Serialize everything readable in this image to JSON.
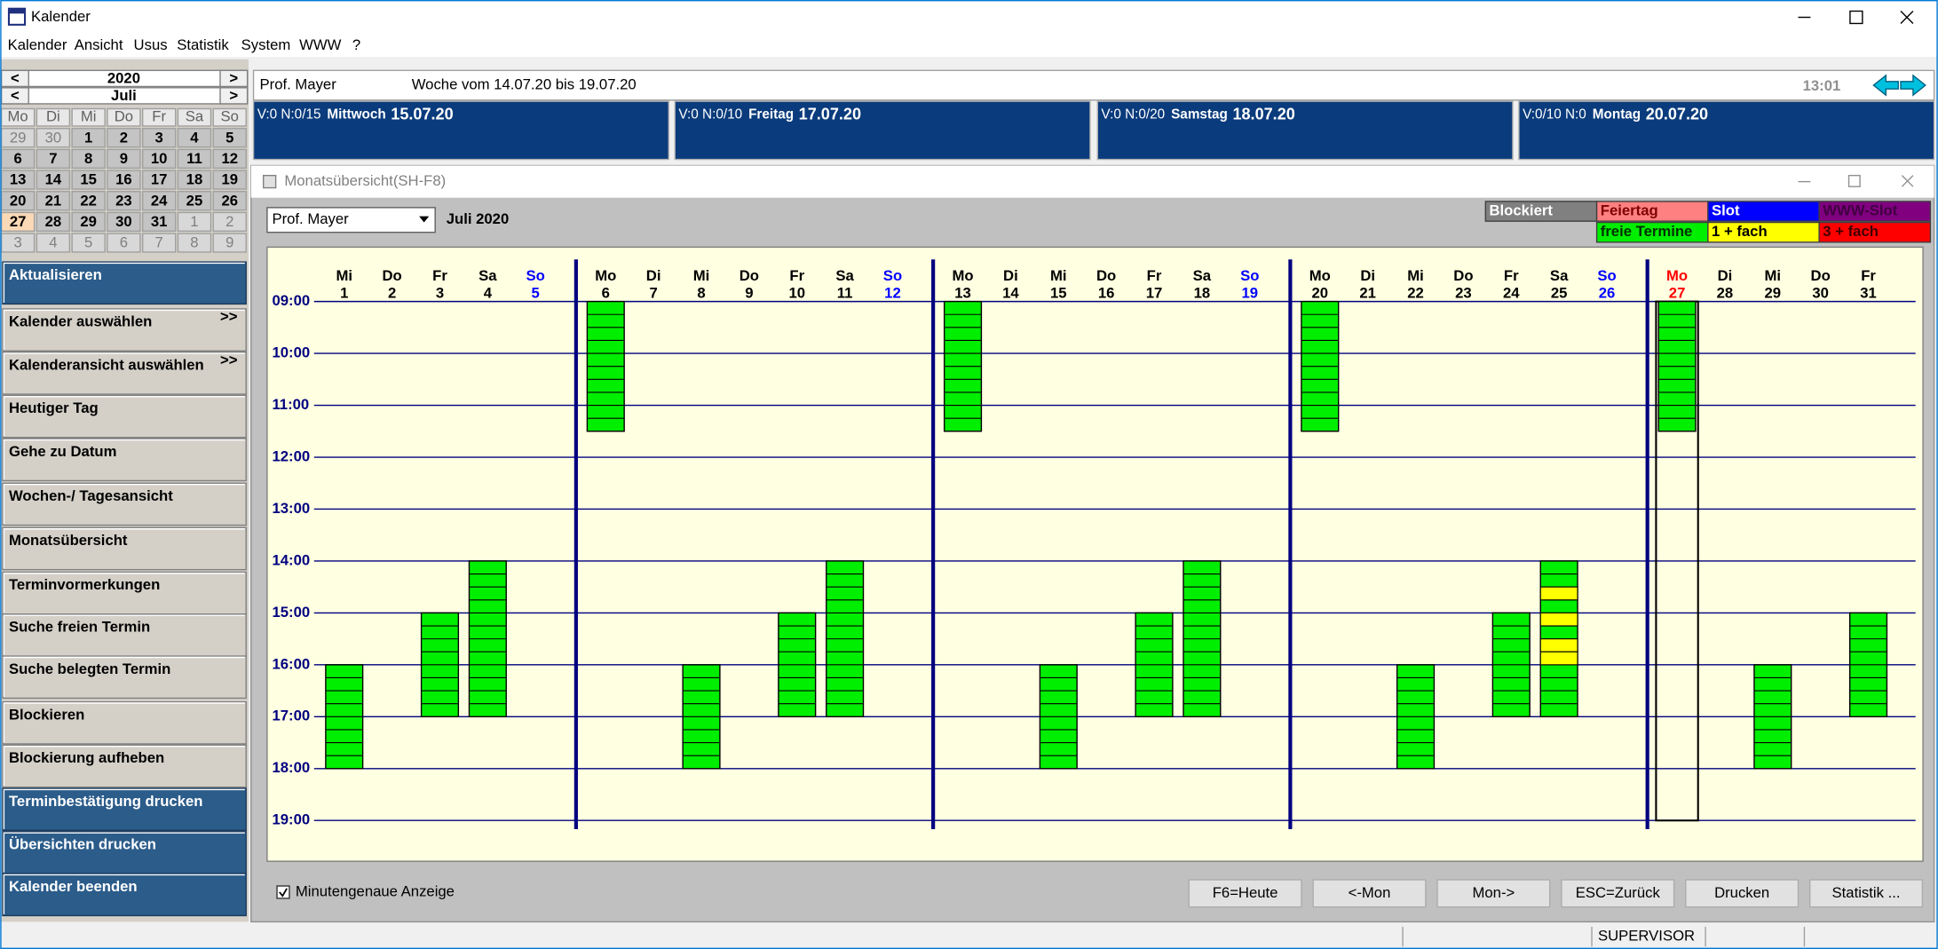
{
  "window": {
    "title": "Kalender"
  },
  "menu": [
    "Kalender",
    "Ansicht",
    "Usus",
    "Statistik",
    "System",
    "WWW",
    "?"
  ],
  "mini_calendar": {
    "year": "2020",
    "month": "Juli",
    "prev": "<",
    "next": ">",
    "weekdays": [
      "Mo",
      "Di",
      "Mi",
      "Do",
      "Fr",
      "Sa",
      "So"
    ],
    "weeks": [
      [
        29,
        30,
        1,
        2,
        3,
        4,
        5
      ],
      [
        6,
        7,
        8,
        9,
        10,
        11,
        12
      ],
      [
        13,
        14,
        15,
        16,
        17,
        18,
        19
      ],
      [
        20,
        21,
        22,
        23,
        24,
        25,
        26
      ],
      [
        27,
        28,
        29,
        30,
        31,
        1,
        2
      ],
      [
        3,
        4,
        5,
        6,
        7,
        8,
        9
      ]
    ],
    "highlight": 27
  },
  "sidebar": [
    {
      "label": "Aktualisieren",
      "highlight": true
    },
    {
      "label": "Kalender auswählen",
      "more": ">>"
    },
    {
      "label": "Kalenderansicht auswählen",
      "more": ">>"
    },
    {
      "label": "Heutiger Tag"
    },
    {
      "label": "Gehe zu Datum"
    },
    {
      "label": "Wochen-/ Tagesansicht"
    },
    {
      "label": "Monatsübersicht"
    },
    {
      "label": "Terminvormerkungen"
    },
    {
      "label": "Suche freien Termin"
    },
    {
      "label": "Suche belegten Termin"
    },
    {
      "label": "Blockieren"
    },
    {
      "label": "Blockierung aufheben"
    },
    {
      "label": "Terminbestätigung drucken",
      "highlight": true
    },
    {
      "label": "Übersichten drucken",
      "highlight": true
    },
    {
      "label": "Kalender beenden",
      "highlight": true
    }
  ],
  "header": {
    "doctor": "Prof. Mayer",
    "week": "Woche vom 14.07.20 bis 19.07.20",
    "clock": "13:01"
  },
  "day_panels": [
    {
      "info": "V:0 N:0/15",
      "day": "Mittwoch",
      "date": "15.07.20"
    },
    {
      "info": "V:0 N:0/10",
      "day": "Freitag",
      "date": "17.07.20"
    },
    {
      "info": "V:0 N:0/20",
      "day": "Samstag",
      "date": "18.07.20"
    },
    {
      "info": "V:0/10 N:0",
      "day": "Montag",
      "date": "20.07.20"
    }
  ],
  "month_view": {
    "title": "Monatsübersicht",
    "shortcut": "(SH-F8)",
    "doctor": "Prof. Mayer",
    "month": "Juli 2020",
    "legend_rows": [
      [
        {
          "label": "Blockiert",
          "color": "#808080",
          "text_color": "#ffffff"
        },
        {
          "label": "Feiertag",
          "color": "#ff8080",
          "text_color": "#800000"
        },
        {
          "label": "Slot",
          "color": "#0000ff",
          "text_color": "#ffffff"
        },
        {
          "label": "WWW-Slot",
          "color": "#800080",
          "text_color": "#400040"
        }
      ],
      [
        {
          "label": "freie Termine",
          "color": "#00ee00",
          "text_color": "#003000"
        },
        {
          "label": "1 + fach",
          "color": "#ffff00",
          "text_color": "#000000"
        },
        {
          "label": "3 + fach",
          "color": "#ff0000",
          "text_color": "#400000"
        }
      ]
    ],
    "colors": {
      "sunday": "#0000ff",
      "today": "#ff0000",
      "grid": "#000080"
    },
    "today": 27,
    "days": [
      {
        "wd": "Mi",
        "n": 1
      },
      {
        "wd": "Do",
        "n": 2
      },
      {
        "wd": "Fr",
        "n": 3
      },
      {
        "wd": "Sa",
        "n": 4
      },
      {
        "wd": "So",
        "n": 5
      },
      {
        "wd": "Mo",
        "n": 6
      },
      {
        "wd": "Di",
        "n": 7
      },
      {
        "wd": "Mi",
        "n": 8
      },
      {
        "wd": "Do",
        "n": 9
      },
      {
        "wd": "Fr",
        "n": 10
      },
      {
        "wd": "Sa",
        "n": 11
      },
      {
        "wd": "So",
        "n": 12
      },
      {
        "wd": "Mo",
        "n": 13
      },
      {
        "wd": "Di",
        "n": 14
      },
      {
        "wd": "Mi",
        "n": 15
      },
      {
        "wd": "Do",
        "n": 16
      },
      {
        "wd": "Fr",
        "n": 17
      },
      {
        "wd": "Sa",
        "n": 18
      },
      {
        "wd": "So",
        "n": 19
      },
      {
        "wd": "Mo",
        "n": 20
      },
      {
        "wd": "Di",
        "n": 21
      },
      {
        "wd": "Mi",
        "n": 22
      },
      {
        "wd": "Do",
        "n": 23
      },
      {
        "wd": "Fr",
        "n": 24
      },
      {
        "wd": "Sa",
        "n": 25
      },
      {
        "wd": "So",
        "n": 26
      },
      {
        "wd": "Mo",
        "n": 27
      },
      {
        "wd": "Di",
        "n": 28
      },
      {
        "wd": "Mi",
        "n": 29
      },
      {
        "wd": "Do",
        "n": 30
      },
      {
        "wd": "Fr",
        "n": 31
      }
    ],
    "time_ticks": [
      {
        "value": 9,
        "label": "09:00"
      },
      {
        "value": 10,
        "label": "10:00"
      },
      {
        "value": 11,
        "label": "11:00"
      },
      {
        "value": 12,
        "label": "12:00"
      },
      {
        "value": 13,
        "label": "13:00"
      },
      {
        "value": 14,
        "label": "14:00"
      },
      {
        "value": 15,
        "label": "15:00"
      },
      {
        "value": 16,
        "label": "16:00"
      },
      {
        "value": 17,
        "label": "17:00"
      },
      {
        "value": 18,
        "label": "18:00"
      },
      {
        "value": 19,
        "label": "19:00"
      }
    ],
    "blocks": [
      {
        "day": 1,
        "start": 16,
        "end": 18
      },
      {
        "day": 3,
        "start": 15,
        "end": 17
      },
      {
        "day": 4,
        "start": 14,
        "end": 17
      },
      {
        "day": 6,
        "start": 9,
        "end": 11.5
      },
      {
        "day": 8,
        "start": 16,
        "end": 18
      },
      {
        "day": 10,
        "start": 15,
        "end": 17
      },
      {
        "day": 11,
        "start": 14,
        "end": 17
      },
      {
        "day": 13,
        "start": 9,
        "end": 11.5
      },
      {
        "day": 15,
        "start": 16,
        "end": 18
      },
      {
        "day": 17,
        "start": 15,
        "end": 17
      },
      {
        "day": 18,
        "start": 14,
        "end": 17
      },
      {
        "day": 20,
        "start": 9,
        "end": 11.5
      },
      {
        "day": 22,
        "start": 16,
        "end": 18
      },
      {
        "day": 24,
        "start": 15,
        "end": 17
      },
      {
        "day": 25,
        "start": 14,
        "end": 17
      },
      {
        "day": 27,
        "start": 9,
        "end": 11.5
      },
      {
        "day": 29,
        "start": 16,
        "end": 18
      },
      {
        "day": 31,
        "start": 15,
        "end": 17
      }
    ],
    "multi_slots": {
      "day": 25,
      "starts": [
        14.5,
        15,
        15.5,
        15.75
      ]
    }
  },
  "checkbox": "Minutengenaue Anzeige",
  "buttons": [
    "F6=Heute",
    "<-Mon",
    "Mon->",
    "ESC=Zurück",
    "Drucken",
    "Statistik ..."
  ],
  "status": "SUPERVISOR"
}
